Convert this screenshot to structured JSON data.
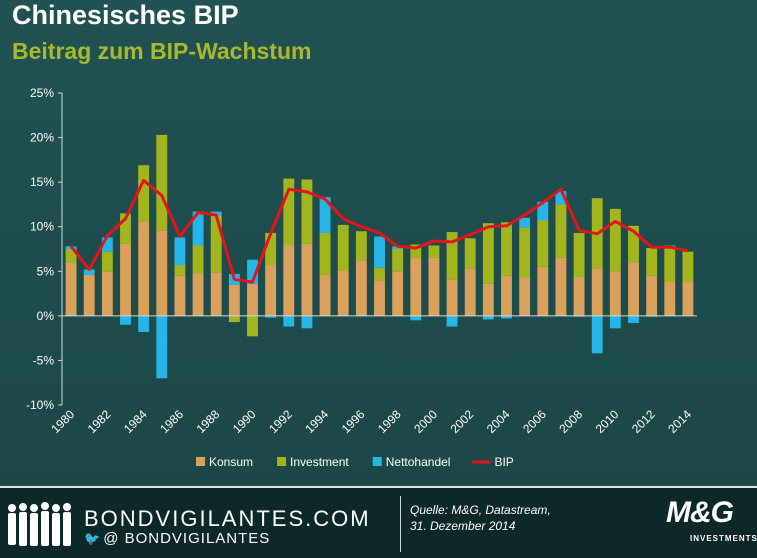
{
  "header": {
    "title": "Chinesisches BIP",
    "subtitle": "Beitrag zum BIP-Wachstum"
  },
  "footer": {
    "brand": "BONDVIGILANTES.COM",
    "handle_prefix": "@",
    "handle": "BONDVIGILANTES",
    "source_line1": "Quelle: M&G, Datastream,",
    "source_line2": "31. Dezember 2014",
    "logo": "M&G",
    "logo_sub": "INVESTMENTS"
  },
  "chart_data": {
    "type": "bar",
    "title": "Beitrag zum BIP-Wachstum",
    "y_axis_format": "percent",
    "ylim": [
      -10,
      25
    ],
    "yticks": [
      -10,
      -5,
      0,
      5,
      10,
      15,
      20,
      25
    ],
    "ytick_labels": [
      "-10%",
      "-5%",
      "0%",
      "5%",
      "10%",
      "15%",
      "20%",
      "25%"
    ],
    "categories": [
      1980,
      1981,
      1982,
      1983,
      1984,
      1985,
      1986,
      1987,
      1988,
      1989,
      1990,
      1991,
      1992,
      1993,
      1994,
      1995,
      1996,
      1997,
      1998,
      1999,
      2000,
      2001,
      2002,
      2003,
      2004,
      2005,
      2006,
      2007,
      2008,
      2009,
      2010,
      2011,
      2012,
      2013,
      2014
    ],
    "xtick_labels": [
      "1980",
      "1982",
      "1984",
      "1986",
      "1988",
      "1990",
      "1992",
      "1994",
      "1996",
      "1998",
      "2000",
      "2002",
      "2004",
      "2006",
      "2008",
      "2010",
      "2012",
      "2014"
    ],
    "series": [
      {
        "name": "Konsum",
        "kind": "bar",
        "color": "#d9a15c",
        "values": [
          6.0,
          4.6,
          5.0,
          8.1,
          10.6,
          9.6,
          4.5,
          4.8,
          4.9,
          3.5,
          3.6,
          5.7,
          8.0,
          8.1,
          4.6,
          5.1,
          6.2,
          4.0,
          5.0,
          6.5,
          6.5,
          4.1,
          5.3,
          3.6,
          4.5,
          4.3,
          5.5,
          6.5,
          4.4,
          5.3,
          5.0,
          6.0,
          4.5,
          3.8,
          3.8
        ]
      },
      {
        "name": "Investment",
        "kind": "bar",
        "color": "#a3b51c",
        "values": [
          1.5,
          0.0,
          2.2,
          3.4,
          6.3,
          10.7,
          1.2,
          3.1,
          6.4,
          -0.7,
          -2.3,
          3.6,
          7.4,
          7.2,
          4.7,
          5.1,
          3.3,
          1.4,
          2.5,
          1.5,
          1.4,
          5.3,
          3.4,
          6.8,
          6.0,
          5.6,
          5.2,
          6.0,
          4.9,
          7.9,
          7.0,
          4.1,
          3.1,
          4.0,
          3.4
        ]
      },
      {
        "name": "Nettohandel",
        "kind": "bar",
        "color": "#27b4e6",
        "values": [
          0.3,
          0.6,
          1.6,
          -1.0,
          -1.8,
          -7.0,
          3.1,
          3.8,
          0.4,
          1.2,
          2.7,
          -0.2,
          -1.2,
          -1.4,
          4.0,
          0.0,
          0.0,
          3.5,
          0.3,
          -0.5,
          0.0,
          -1.2,
          0.0,
          -0.4,
          -0.3,
          1.1,
          2.1,
          1.5,
          -0.1,
          -4.2,
          -1.4,
          -0.8,
          -0.1,
          0.1,
          0.0
        ]
      },
      {
        "name": "BIP",
        "kind": "line",
        "color": "#e3151b",
        "values": [
          7.8,
          5.2,
          9.0,
          10.9,
          15.2,
          13.5,
          8.9,
          11.6,
          11.3,
          4.1,
          3.8,
          9.2,
          14.2,
          13.9,
          13.1,
          10.9,
          10.0,
          9.3,
          7.8,
          7.6,
          8.4,
          8.3,
          9.1,
          10.0,
          10.1,
          11.3,
          12.7,
          14.2,
          9.6,
          9.2,
          10.6,
          9.5,
          7.7,
          7.7,
          7.3
        ]
      }
    ],
    "legend_position": "bottom",
    "grid": false
  }
}
